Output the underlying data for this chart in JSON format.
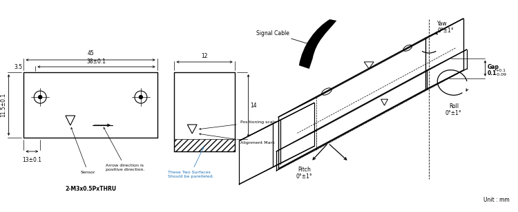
{
  "bg_color": "#ffffff",
  "line_color": "#000000",
  "annotation_color": "#1a6fb5",
  "fs_small": 5.5,
  "fs_tiny": 4.5,
  "labels": {
    "dim_45": "45",
    "dim_38": "38±0.1",
    "dim_35": "3.5",
    "dim_115": "11.5±0.1",
    "dim_13": "13±0.1",
    "thread": "2-M3x0.5PxTHRU",
    "arrow_dir": "Arrow direction is\npositive direction.",
    "sensor": "Sensor",
    "dim_12": "12",
    "dim_14": "14",
    "parallel": "These Two Surfaces\nShould be parelleled.",
    "posscale": "Positioning scale",
    "alignmark": "Alignment Mark",
    "signal": "Signal Cable",
    "yaw": "Yaw\n0°±1°",
    "pitch": "Pitch\n0°±1°",
    "roll": "Roll\n0°±1°",
    "gap": "Gap",
    "gap_val": "0.1",
    "gap_tol": "+0.1\n-0.09",
    "unit": "Unit : mm"
  }
}
